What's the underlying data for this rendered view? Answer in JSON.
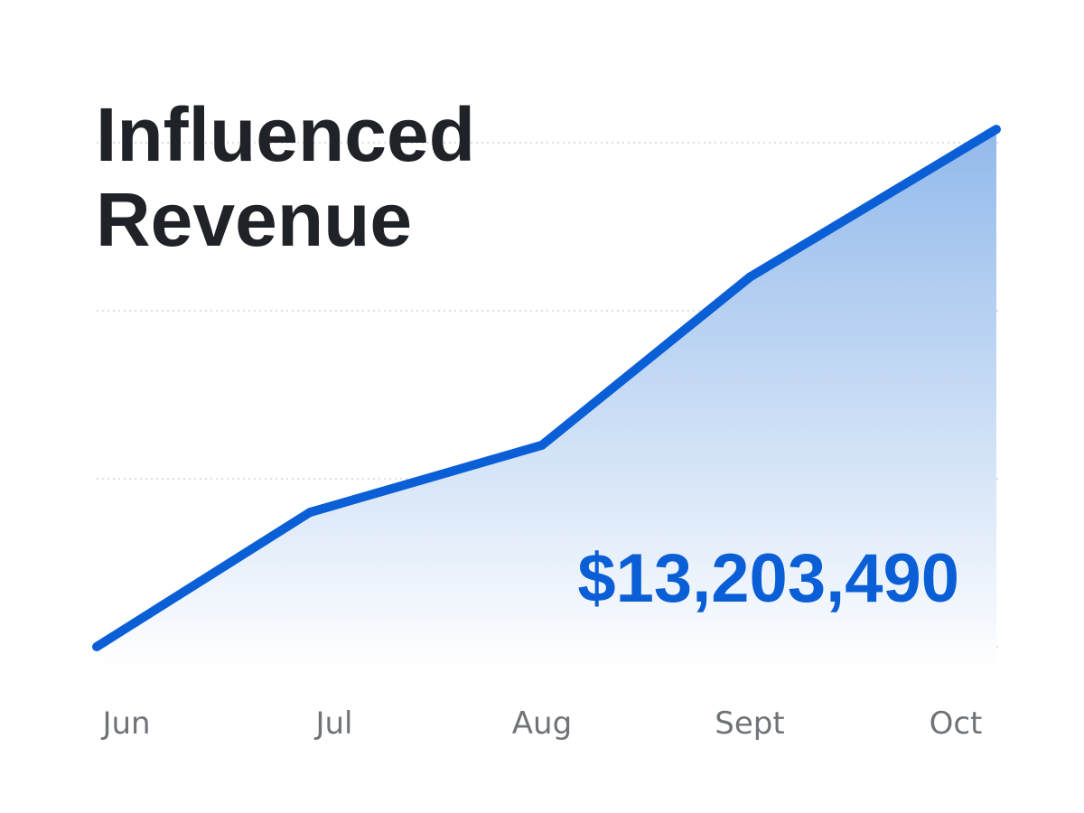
{
  "colors": {
    "line": "#0a5fd6",
    "fill_top": "#8db6ea",
    "fill_bottom": "#ffffff",
    "title": "#1f2226",
    "tick": "#6f7378",
    "grid": "#cfd3d8"
  },
  "chart_data": {
    "type": "area",
    "title_lines": [
      "Influenced",
      "Revenue"
    ],
    "total_label": "$13,203,490",
    "categories": [
      "Jun",
      "Jul",
      "Aug",
      "Sept",
      "Oct"
    ],
    "values": [
      0,
      2,
      3,
      5.5,
      7.7
    ],
    "ylim": [
      0,
      7.5
    ],
    "grid": true,
    "xlabel": "",
    "ylabel": ""
  }
}
